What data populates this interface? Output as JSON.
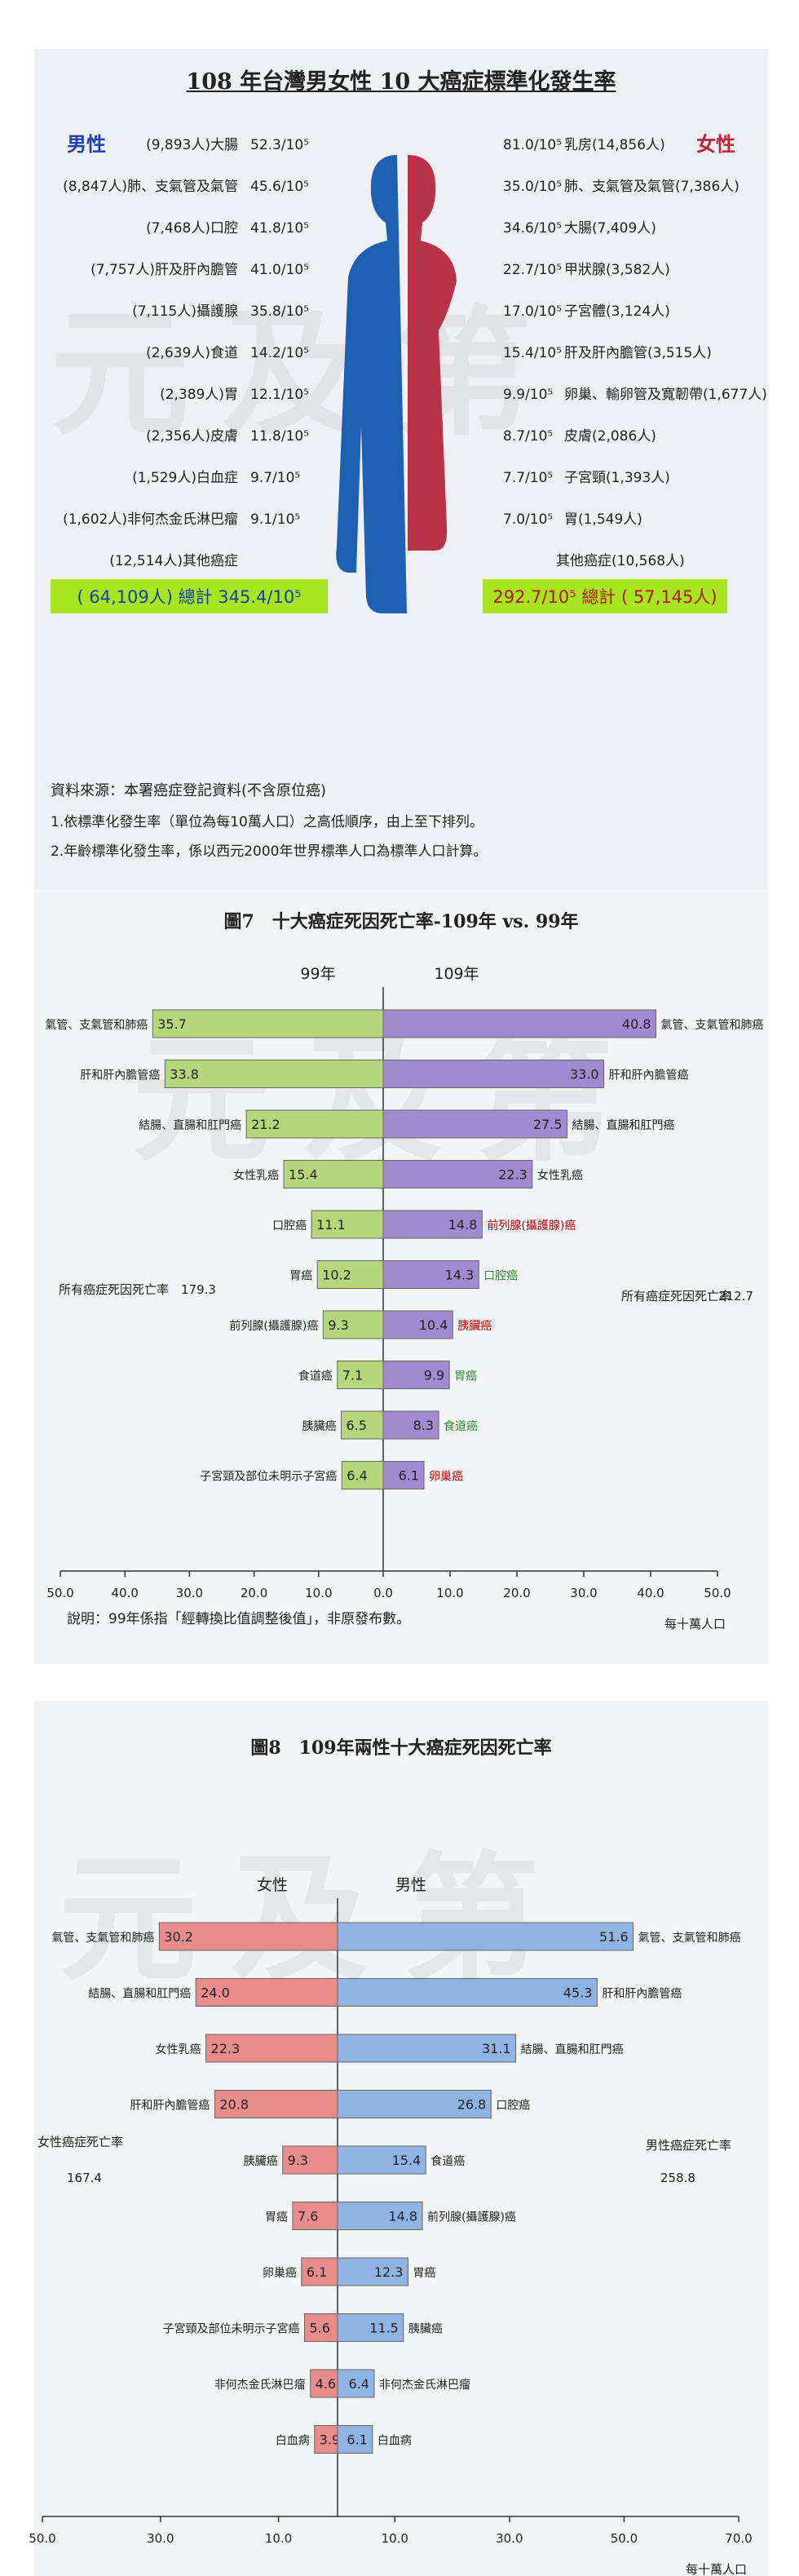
{
  "chart_data": [
    {
      "type": "bar",
      "title": "108 年台灣男女性 10 大癌症標準化發生率",
      "male_label": "男性",
      "female_label": "女性",
      "male": [
        {
          "count": "(9,893人)",
          "name": "大腸",
          "rate": 52.3
        },
        {
          "count": "(8,847人)",
          "name": "肺、支氣管及氣管",
          "rate": 45.6
        },
        {
          "count": "(7,468人)",
          "name": "口腔",
          "rate": 41.8
        },
        {
          "count": "(7,757人)",
          "name": "肝及肝內膽管",
          "rate": 41.0
        },
        {
          "count": "(7,115人)",
          "name": "攝護腺",
          "rate": 35.8
        },
        {
          "count": "(2,639人)",
          "name": "食道",
          "rate": 14.2
        },
        {
          "count": "(2,389人)",
          "name": "胃",
          "rate": 12.1
        },
        {
          "count": "(2,356人)",
          "name": "皮膚",
          "rate": 11.8
        },
        {
          "count": "(1,529人)",
          "name": "白血症",
          "rate": 9.7
        },
        {
          "count": "(1,602人)",
          "name": "非何杰金氏淋巴瘤",
          "rate": 9.1
        },
        {
          "count": "(12,514人)",
          "name": "其他癌症",
          "rate": null
        }
      ],
      "female": [
        {
          "count": "(14,856人)",
          "name": "乳房",
          "rate": 81.0
        },
        {
          "count": "(7,386人)",
          "name": "肺、支氣管及氣管",
          "rate": 35.0
        },
        {
          "count": "(7,409人)",
          "name": "大腸",
          "rate": 34.6
        },
        {
          "count": "(3,582人)",
          "name": "甲狀腺",
          "rate": 22.7
        },
        {
          "count": "(3,124人)",
          "name": "子宮體",
          "rate": 17.0
        },
        {
          "count": "(3,515人)",
          "name": "肝及肝內膽管",
          "rate": 15.4
        },
        {
          "count": "(1,677人)",
          "name": "卵巢、輸卵管及寬韌帶",
          "rate": 9.9
        },
        {
          "count": "(2,086人)",
          "name": "皮膚",
          "rate": 8.7
        },
        {
          "count": "(1,393人)",
          "name": "子宮頸",
          "rate": 7.7
        },
        {
          "count": "(1,549人)",
          "name": "胃",
          "rate": 7.0
        },
        {
          "count": "(10,568人)",
          "name": "其他癌症",
          "rate": null
        }
      ],
      "unit": "/10⁵",
      "male_total": "( 64,109人) 總計 345.4/10⁵",
      "female_total": "292.7/10⁵ 總計 ( 57,145人)",
      "source": "資料來源：本署癌症登記資料(不含原位癌)",
      "notes": [
        "1.依標準化發生率（單位為每10萬人口）之高低順序，由上至下排列。",
        "2.年齡標準化發生率，係以西元2000年世界標準人口為標準人口計算。"
      ],
      "watermark": "元及第"
    },
    {
      "type": "bar",
      "title": "圖7　十大癌症死因死亡率-109年 vs. 99年",
      "left_header": "99年",
      "right_header": "109年",
      "left": [
        {
          "label": "氣管、支氣管和肺癌",
          "value": 35.7
        },
        {
          "label": "肝和肝內膽管癌",
          "value": 33.8
        },
        {
          "label": "結腸、直腸和肛門癌",
          "value": 21.2
        },
        {
          "label": "女性乳癌",
          "value": 15.4
        },
        {
          "label": "口腔癌",
          "value": 11.1
        },
        {
          "label": "胃癌",
          "value": 10.2
        },
        {
          "label": "前列腺(攝護腺)癌",
          "value": 9.3
        },
        {
          "label": "食道癌",
          "value": 7.1
        },
        {
          "label": "胰臟癌",
          "value": 6.5
        },
        {
          "label": "子宮頸及部位未明示子宮癌",
          "value": 6.4
        }
      ],
      "right": [
        {
          "label": "氣管、支氣管和肺癌",
          "value": 40.8,
          "color": "#222222"
        },
        {
          "label": "肝和肝內膽管癌",
          "value": 33.0,
          "color": "#222222"
        },
        {
          "label": "結腸、直腸和肛門癌",
          "value": 27.5,
          "color": "#222222"
        },
        {
          "label": "女性乳癌",
          "value": 22.3,
          "color": "#222222"
        },
        {
          "label": "前列腺(攝護腺)癌",
          "value": 14.8,
          "color": "#c00000"
        },
        {
          "label": "口腔癌",
          "value": 14.3,
          "color": "#2e8b2e"
        },
        {
          "label": "胰臟癌",
          "value": 10.4,
          "color": "#c00000"
        },
        {
          "label": "胃癌",
          "value": 9.9,
          "color": "#2e8b2e"
        },
        {
          "label": "食道癌",
          "value": 8.3,
          "color": "#2e8b2e"
        },
        {
          "label": "卵巢癌",
          "value": 6.1,
          "color": "#c00000"
        }
      ],
      "left_total_label": "所有癌症死因死亡率",
      "left_total": "179.3",
      "right_total_label": "所有癌症死因死亡率",
      "right_total": "212.7",
      "ticks": [
        "50.0",
        "40.0",
        "30.0",
        "20.0",
        "10.0",
        "0.0",
        "10.0",
        "20.0",
        "30.0",
        "40.0",
        "50.0"
      ],
      "xmax": 50,
      "unit_label": "每十萬人口",
      "note": "說明：99年係指「經轉換比值調整後值」，非原發布數。",
      "left_color": "#b5d67a",
      "right_color": "#a08ad0"
    },
    {
      "type": "bar",
      "title": "圖8　109年兩性十大癌症死因死亡率",
      "left_header": "女性",
      "right_header": "男性",
      "left": [
        {
          "label": "氣管、支氣管和肺癌",
          "value": 30.2
        },
        {
          "label": "結腸、直腸和肛門癌",
          "value": 24.0
        },
        {
          "label": "女性乳癌",
          "value": 22.3
        },
        {
          "label": "肝和肝內膽管癌",
          "value": 20.8
        },
        {
          "label": "胰臟癌",
          "value": 9.3
        },
        {
          "label": "胃癌",
          "value": 7.6
        },
        {
          "label": "卵巢癌",
          "value": 6.1
        },
        {
          "label": "子宮頸及部位未明示子宮癌",
          "value": 5.6
        },
        {
          "label": "非何杰金氏淋巴瘤",
          "value": 4.6
        },
        {
          "label": "白血病",
          "value": 3.9
        }
      ],
      "right": [
        {
          "label": "氣管、支氣管和肺癌",
          "value": 51.6
        },
        {
          "label": "肝和肝內膽管癌",
          "value": 45.3
        },
        {
          "label": "結腸、直腸和肛門癌",
          "value": 31.1
        },
        {
          "label": "口腔癌",
          "value": 26.8
        },
        {
          "label": "食道癌",
          "value": 15.4
        },
        {
          "label": "前列腺(攝護腺)癌",
          "value": 14.8
        },
        {
          "label": "胃癌",
          "value": 12.3
        },
        {
          "label": "胰臟癌",
          "value": 11.5
        },
        {
          "label": "非何杰金氏淋巴瘤",
          "value": 6.4
        },
        {
          "label": "白血病",
          "value": 6.1
        }
      ],
      "left_total_label": "女性癌症死亡率",
      "left_total": "167.4",
      "right_total_label": "男性癌症死亡率",
      "right_total": "258.8",
      "ticks": [
        "50.0",
        "30.0",
        "10.0",
        "10.0",
        "30.0",
        "50.0",
        "70.0"
      ],
      "left_max": 50,
      "right_max": 70,
      "unit_label": "每十萬人口",
      "left_color": "#e88c8c",
      "right_color": "#8fb4e3"
    }
  ]
}
